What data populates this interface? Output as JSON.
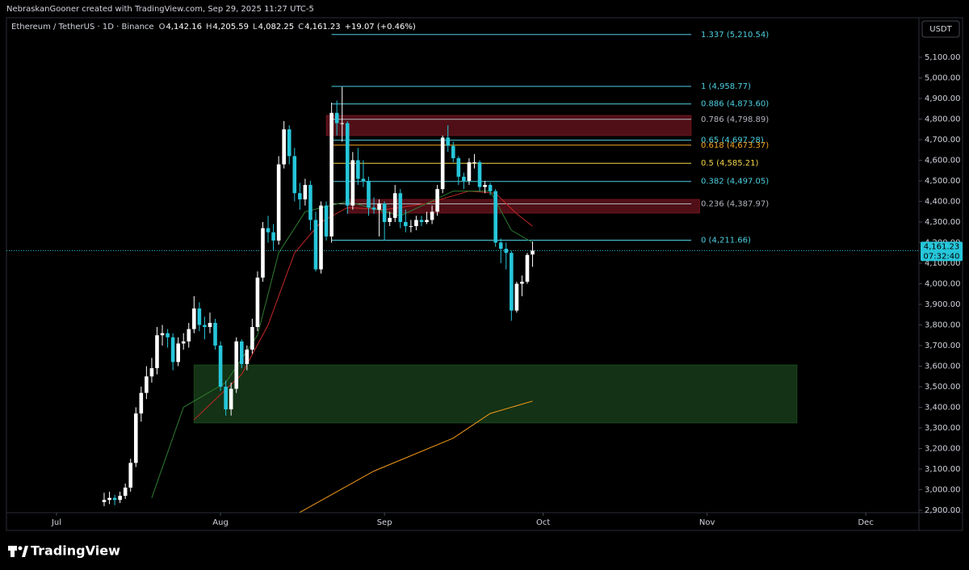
{
  "header": "NebraskanGooner created with TradingView.com, Sep 29, 2025 11:27 UTC-5",
  "footer": "TradingView",
  "chart_data": {
    "type": "candlestick",
    "legend": {
      "symbol": "Ethereum / TetherUS · 1D · Binance",
      "fields": [
        {
          "key": "O",
          "value": "4,142.16"
        },
        {
          "key": "H",
          "value": "4,205.59"
        },
        {
          "key": "L",
          "value": "4,082.25"
        },
        {
          "key": "C",
          "value": "4,161.23"
        }
      ],
      "change": "+19.07 (+0.46%)"
    },
    "currency": "USDT",
    "up_color": "#ffffff",
    "down_color": "#26c6da",
    "xlim": [
      -9.47,
      163.05
    ],
    "xticks": [
      {
        "value": 0,
        "label": "Jul"
      },
      {
        "value": 31,
        "label": "Aug"
      },
      {
        "value": 62,
        "label": "Sep"
      },
      {
        "value": 92,
        "label": "Oct"
      },
      {
        "value": 123,
        "label": "Nov"
      },
      {
        "value": 153,
        "label": "Dec"
      }
    ],
    "ylim": [
      2900,
      5292
    ],
    "yticks": [
      {
        "value": 2900,
        "label": "2,900.00"
      },
      {
        "value": 3000,
        "label": "3,000.00"
      },
      {
        "value": 3100,
        "label": "3,100.00"
      },
      {
        "value": 3200,
        "label": "3,200.00"
      },
      {
        "value": 3300,
        "label": "3,300.00"
      },
      {
        "value": 3400,
        "label": "3,400.00"
      },
      {
        "value": 3500,
        "label": "3,500.00"
      },
      {
        "value": 3600,
        "label": "3,600.00"
      },
      {
        "value": 3700,
        "label": "3,700.00"
      },
      {
        "value": 3800,
        "label": "3,800.00"
      },
      {
        "value": 3900,
        "label": "3,900.00"
      },
      {
        "value": 4000,
        "label": "4,000.00"
      },
      {
        "value": 4100,
        "label": "4,100.00"
      },
      {
        "value": 4200,
        "label": "4,200.00"
      },
      {
        "value": 4300,
        "label": "4,300.00"
      },
      {
        "value": 4400,
        "label": "4,400.00"
      },
      {
        "value": 4500,
        "label": "4,500.00"
      },
      {
        "value": 4600,
        "label": "4,600.00"
      },
      {
        "value": 4700,
        "label": "4,700.00"
      },
      {
        "value": 4800,
        "label": "4,800.00"
      },
      {
        "value": 4900,
        "label": "4,900.00"
      },
      {
        "value": 5000,
        "label": "5,000.00"
      },
      {
        "value": 5100,
        "label": "5,100.00"
      }
    ],
    "x": [
      9,
      10,
      11,
      12,
      13,
      14,
      15,
      16,
      17,
      18,
      19,
      20,
      21,
      22,
      23,
      24,
      25,
      26,
      27,
      28,
      29,
      30,
      31,
      32,
      33,
      34,
      35,
      36,
      37,
      38,
      39,
      40,
      41,
      42,
      43,
      44,
      45,
      46,
      47,
      48,
      49,
      50,
      51,
      52,
      53,
      54,
      55,
      56,
      57,
      58,
      59,
      60,
      61,
      62,
      63,
      64,
      65,
      66,
      67,
      68,
      69,
      70,
      71,
      72,
      73,
      74,
      75,
      76,
      77,
      78,
      79,
      80,
      81,
      82,
      83,
      84,
      85,
      86,
      87,
      88,
      89,
      90
    ],
    "ohlc": [
      [
        2940,
        2985,
        2920,
        2950
      ],
      [
        2950,
        2990,
        2930,
        2960
      ],
      [
        2960,
        2975,
        2925,
        2950
      ],
      [
        2950,
        2990,
        2935,
        2970
      ],
      [
        2970,
        3030,
        2955,
        3010
      ],
      [
        3010,
        3150,
        2990,
        3130
      ],
      [
        3130,
        3400,
        3110,
        3370
      ],
      [
        3370,
        3500,
        3330,
        3470
      ],
      [
        3470,
        3600,
        3440,
        3550
      ],
      [
        3550,
        3640,
        3520,
        3590
      ],
      [
        3590,
        3790,
        3560,
        3750
      ],
      [
        3750,
        3800,
        3700,
        3760
      ],
      [
        3760,
        3780,
        3690,
        3740
      ],
      [
        3740,
        3760,
        3580,
        3620
      ],
      [
        3620,
        3740,
        3600,
        3710
      ],
      [
        3710,
        3760,
        3680,
        3720
      ],
      [
        3720,
        3810,
        3690,
        3780
      ],
      [
        3780,
        3940,
        3760,
        3880
      ],
      [
        3880,
        3910,
        3770,
        3800
      ],
      [
        3800,
        3840,
        3730,
        3790
      ],
      [
        3790,
        3860,
        3760,
        3810
      ],
      [
        3810,
        3830,
        3680,
        3700
      ],
      [
        3700,
        3720,
        3480,
        3500
      ],
      [
        3500,
        3530,
        3360,
        3390
      ],
      [
        3390,
        3520,
        3360,
        3490
      ],
      [
        3490,
        3740,
        3470,
        3720
      ],
      [
        3720,
        3730,
        3590,
        3610
      ],
      [
        3610,
        3700,
        3580,
        3680
      ],
      [
        3680,
        3830,
        3660,
        3790
      ],
      [
        3790,
        4060,
        3770,
        4030
      ],
      [
        4030,
        4300,
        4010,
        4270
      ],
      [
        4270,
        4330,
        4200,
        4250
      ],
      [
        4250,
        4290,
        4160,
        4210
      ],
      [
        4210,
        4620,
        4190,
        4580
      ],
      [
        4580,
        4790,
        4560,
        4750
      ],
      [
        4750,
        4770,
        4580,
        4620
      ],
      [
        4620,
        4660,
        4400,
        4440
      ],
      [
        4440,
        4490,
        4360,
        4410
      ],
      [
        4410,
        4510,
        4380,
        4480
      ],
      [
        4480,
        4500,
        4260,
        4310
      ],
      [
        4310,
        4350,
        4060,
        4070
      ],
      [
        4070,
        4400,
        4050,
        4380
      ],
      [
        4380,
        4400,
        4210,
        4230
      ],
      [
        4230,
        4880,
        4200,
        4830
      ],
      [
        4830,
        4890,
        4720,
        4780
      ],
      [
        4780,
        4956,
        4690,
        4780
      ],
      [
        4780,
        4790,
        4340,
        4380
      ],
      [
        4380,
        4640,
        4360,
        4600
      ],
      [
        4600,
        4660,
        4480,
        4510
      ],
      [
        4510,
        4600,
        4470,
        4500
      ],
      [
        4500,
        4520,
        4330,
        4370
      ],
      [
        4370,
        4420,
        4340,
        4360
      ],
      [
        4360,
        4410,
        4230,
        4390
      ],
      [
        4390,
        4400,
        4210,
        4300
      ],
      [
        4300,
        4350,
        4280,
        4320
      ],
      [
        4320,
        4480,
        4300,
        4440
      ],
      [
        4440,
        4460,
        4270,
        4300
      ],
      [
        4300,
        4360,
        4250,
        4280
      ],
      [
        4280,
        4310,
        4250,
        4280
      ],
      [
        4280,
        4330,
        4260,
        4310
      ],
      [
        4310,
        4330,
        4280,
        4300
      ],
      [
        4300,
        4350,
        4290,
        4310
      ],
      [
        4310,
        4380,
        4290,
        4350
      ],
      [
        4350,
        4480,
        4330,
        4460
      ],
      [
        4460,
        4720,
        4440,
        4710
      ],
      [
        4710,
        4770,
        4640,
        4670
      ],
      [
        4670,
        4690,
        4590,
        4610
      ],
      [
        4610,
        4620,
        4480,
        4520
      ],
      [
        4520,
        4540,
        4460,
        4500
      ],
      [
        4500,
        4610,
        4480,
        4590
      ],
      [
        4590,
        4630,
        4560,
        4590
      ],
      [
        4590,
        4600,
        4450,
        4470
      ],
      [
        4470,
        4500,
        4440,
        4480
      ],
      [
        4480,
        4490,
        4430,
        4450
      ],
      [
        4450,
        4460,
        4180,
        4200
      ],
      [
        4200,
        4220,
        4100,
        4170
      ],
      [
        4170,
        4200,
        4070,
        4150
      ],
      [
        4150,
        4160,
        3820,
        3870
      ],
      [
        3870,
        4010,
        3860,
        4000
      ],
      [
        4000,
        4040,
        3940,
        4010
      ],
      [
        4010,
        4150,
        4000,
        4140
      ],
      [
        4142.16,
        4205.59,
        4082.25,
        4161.23
      ]
    ],
    "moving_averages": [
      {
        "color": "#f59c1a",
        "x": [
          46,
          60,
          75,
          82,
          90
        ],
        "values": [
          2890,
          3090,
          3250,
          3370,
          3430
        ]
      },
      {
        "color": "#c62828",
        "x": [
          26,
          35,
          40,
          45,
          50,
          55,
          62,
          70,
          78,
          83,
          87,
          90
        ],
        "values": [
          3340,
          3560,
          3800,
          4150,
          4300,
          4370,
          4360,
          4390,
          4450,
          4440,
          4340,
          4280
        ]
      },
      {
        "color": "#2e7d32",
        "x": [
          18,
          24,
          32,
          38,
          42,
          47,
          55,
          65,
          75,
          82,
          86,
          90
        ],
        "values": [
          2960,
          3400,
          3520,
          3750,
          4150,
          4350,
          4400,
          4330,
          4450,
          4450,
          4260,
          4200
        ]
      }
    ],
    "fib_x": [
      52,
      120
    ],
    "fib_levels": [
      {
        "label": "1.337 (5,210.54)",
        "value": 5210.54,
        "color": "#4dd0e1"
      },
      {
        "label": "1 (4,958.77)",
        "value": 4958.77,
        "color": "#4dd0e1"
      },
      {
        "label": "0.886 (4,873.60)",
        "value": 4873.6,
        "color": "#4dd0e1"
      },
      {
        "label": "0.786 (4,798.89)",
        "value": 4798.89,
        "color": "#b2b5be"
      },
      {
        "label": "0.65 (4,697.28)",
        "value": 4697.28,
        "color": "#4dd0e1"
      },
      {
        "label": "0.618 (4,673.37)",
        "value": 4673.37,
        "color": "#f5a623"
      },
      {
        "label": "0.5 (4,585.21)",
        "value": 4585.21,
        "color": "#f5d547"
      },
      {
        "label": "0.382 (4,497.05)",
        "value": 4497.05,
        "color": "#4dd0e1"
      },
      {
        "label": "0.236 (4,387.97)",
        "value": 4387.97,
        "color": "#b2b5be"
      },
      {
        "label": "0 (4,211.66)",
        "value": 4211.66,
        "color": "#4dd0e1"
      }
    ],
    "zones": [
      {
        "x": [
          51,
          120
        ],
        "y": [
          4720,
          4818
        ],
        "color": "rgba(178,34,52,0.45)"
      },
      {
        "x": [
          55,
          121.6
        ],
        "y": [
          4343,
          4410
        ],
        "color": "rgba(178,34,52,0.45)"
      },
      {
        "x": [
          26,
          140
        ],
        "y": [
          3324,
          3606
        ],
        "color": "rgba(56,142,60,0.35)"
      }
    ],
    "last_price": {
      "value": 4161.23,
      "label": "4,161.23",
      "countdown": "07:32:40"
    }
  }
}
